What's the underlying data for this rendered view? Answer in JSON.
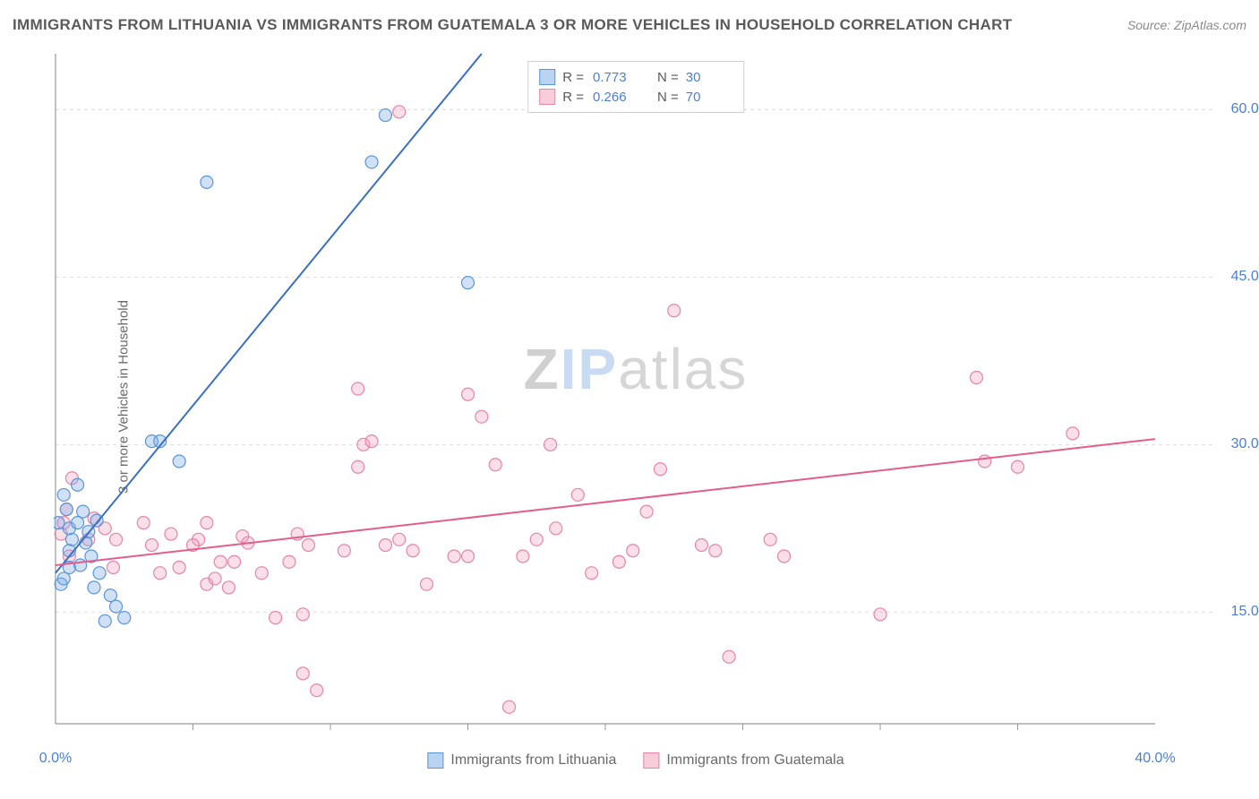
{
  "header": {
    "title": "IMMIGRANTS FROM LITHUANIA VS IMMIGRANTS FROM GUATEMALA 3 OR MORE VEHICLES IN HOUSEHOLD CORRELATION CHART",
    "source": "Source: ZipAtlas.com"
  },
  "chart": {
    "type": "scatter",
    "ylabel": "3 or more Vehicles in Household",
    "xlim": [
      0,
      40
    ],
    "ylim": [
      5,
      65
    ],
    "xticks": [
      {
        "v": 0,
        "label": "0.0%"
      },
      {
        "v": 40,
        "label": "40.0%"
      }
    ],
    "xminor": [
      5,
      10,
      15,
      20,
      25,
      30,
      35
    ],
    "yticks": [
      {
        "v": 15,
        "label": "15.0%"
      },
      {
        "v": 30,
        "label": "30.0%"
      },
      {
        "v": 45,
        "label": "45.0%"
      },
      {
        "v": 60,
        "label": "60.0%"
      }
    ],
    "background_color": "#ffffff",
    "grid_color": "#dedede",
    "axis_color": "#999999",
    "marker_radius": 7,
    "marker_stroke_width": 1.2,
    "line_width": 2,
    "series": [
      {
        "name": "Immigrants from Lithuania",
        "color_fill": "rgba(120,170,230,0.35)",
        "color_stroke": "#5a95d8",
        "line_color": "#3a6fc8",
        "swatch_fill": "#b8d4f2",
        "swatch_stroke": "#5a95d8",
        "r": "0.773",
        "n": "30",
        "trend": {
          "x1": 0,
          "y1": 18.5,
          "x2": 15.5,
          "y2": 65
        },
        "points": [
          [
            0.2,
            17.5
          ],
          [
            0.3,
            18
          ],
          [
            0.5,
            19
          ],
          [
            0.5,
            20.5
          ],
          [
            0.6,
            21.5
          ],
          [
            0.5,
            22.5
          ],
          [
            0.8,
            23
          ],
          [
            1.0,
            24
          ],
          [
            0.4,
            24.2
          ],
          [
            1.2,
            22.2
          ],
          [
            0.8,
            26.4
          ],
          [
            1.5,
            23.2
          ],
          [
            1.3,
            20
          ],
          [
            1.6,
            18.5
          ],
          [
            2.0,
            16.5
          ],
          [
            2.2,
            15.5
          ],
          [
            2.5,
            14.5
          ],
          [
            1.8,
            14.2
          ],
          [
            1.4,
            17.2
          ],
          [
            3.5,
            30.3
          ],
          [
            3.8,
            30.3
          ],
          [
            4.5,
            28.5
          ],
          [
            0.3,
            25.5
          ],
          [
            0.1,
            23
          ],
          [
            5.5,
            53.5
          ],
          [
            11.5,
            55.3
          ],
          [
            12.0,
            59.5
          ],
          [
            15.0,
            44.5
          ],
          [
            0.9,
            19.2
          ],
          [
            1.1,
            21.2
          ]
        ]
      },
      {
        "name": "Immigrants from Guatemala",
        "color_fill": "rgba(240,150,180,0.3)",
        "color_stroke": "#e884a8",
        "line_color": "#e45d8c",
        "swatch_fill": "#f8cdd9",
        "swatch_stroke": "#e884a8",
        "r": "0.266",
        "n": "70",
        "trend": {
          "x1": 0,
          "y1": 19.2,
          "x2": 40,
          "y2": 30.5
        },
        "points": [
          [
            0.3,
            23
          ],
          [
            0.2,
            22
          ],
          [
            0.5,
            20
          ],
          [
            1.2,
            21.5
          ],
          [
            2.2,
            21.5
          ],
          [
            1.8,
            22.5
          ],
          [
            3.5,
            21
          ],
          [
            3.8,
            18.5
          ],
          [
            4.5,
            19
          ],
          [
            5.2,
            21.5
          ],
          [
            5.5,
            17.5
          ],
          [
            5.8,
            18
          ],
          [
            6.0,
            19.5
          ],
          [
            6.3,
            17.2
          ],
          [
            3.2,
            23
          ],
          [
            4.2,
            22
          ],
          [
            6.8,
            21.8
          ],
          [
            7.5,
            18.5
          ],
          [
            8.0,
            14.5
          ],
          [
            8.5,
            19.5
          ],
          [
            8.8,
            22
          ],
          [
            9.0,
            14.8
          ],
          [
            9.5,
            8
          ],
          [
            9.2,
            21
          ],
          [
            10.5,
            20.5
          ],
          [
            11.0,
            28
          ],
          [
            11.2,
            30
          ],
          [
            11.0,
            35
          ],
          [
            11.5,
            30.3
          ],
          [
            12.5,
            59.8
          ],
          [
            12.0,
            21
          ],
          [
            13.0,
            20.5
          ],
          [
            13.5,
            17.5
          ],
          [
            14.5,
            20
          ],
          [
            15.0,
            34.5
          ],
          [
            15.0,
            20
          ],
          [
            15.5,
            32.5
          ],
          [
            16.0,
            28.2
          ],
          [
            16.5,
            6.5
          ],
          [
            17.0,
            20
          ],
          [
            17.5,
            21.5
          ],
          [
            18.0,
            30
          ],
          [
            18.2,
            22.5
          ],
          [
            19.0,
            25.5
          ],
          [
            19.5,
            18.5
          ],
          [
            20.5,
            19.5
          ],
          [
            21.0,
            20.5
          ],
          [
            21.5,
            24
          ],
          [
            22.0,
            27.8
          ],
          [
            22.5,
            42
          ],
          [
            23.5,
            21
          ],
          [
            24.0,
            20.5
          ],
          [
            24.5,
            11
          ],
          [
            26.0,
            21.5
          ],
          [
            26.5,
            20
          ],
          [
            30.0,
            14.8
          ],
          [
            33.5,
            36
          ],
          [
            33.8,
            28.5
          ],
          [
            35.0,
            28
          ],
          [
            37.0,
            31
          ],
          [
            0.4,
            24.2
          ],
          [
            0.6,
            27
          ],
          [
            1.4,
            23.4
          ],
          [
            2.1,
            19
          ],
          [
            9.0,
            9.5
          ],
          [
            5.0,
            21
          ],
          [
            5.5,
            23
          ],
          [
            6.5,
            19.5
          ],
          [
            7.0,
            21.2
          ],
          [
            12.5,
            21.5
          ]
        ]
      }
    ],
    "watermark": {
      "z": "Z",
      "ip": "IP",
      "atlas": "atlas"
    },
    "legend_bottom": [
      {
        "series_index": 0
      },
      {
        "series_index": 1
      }
    ]
  }
}
